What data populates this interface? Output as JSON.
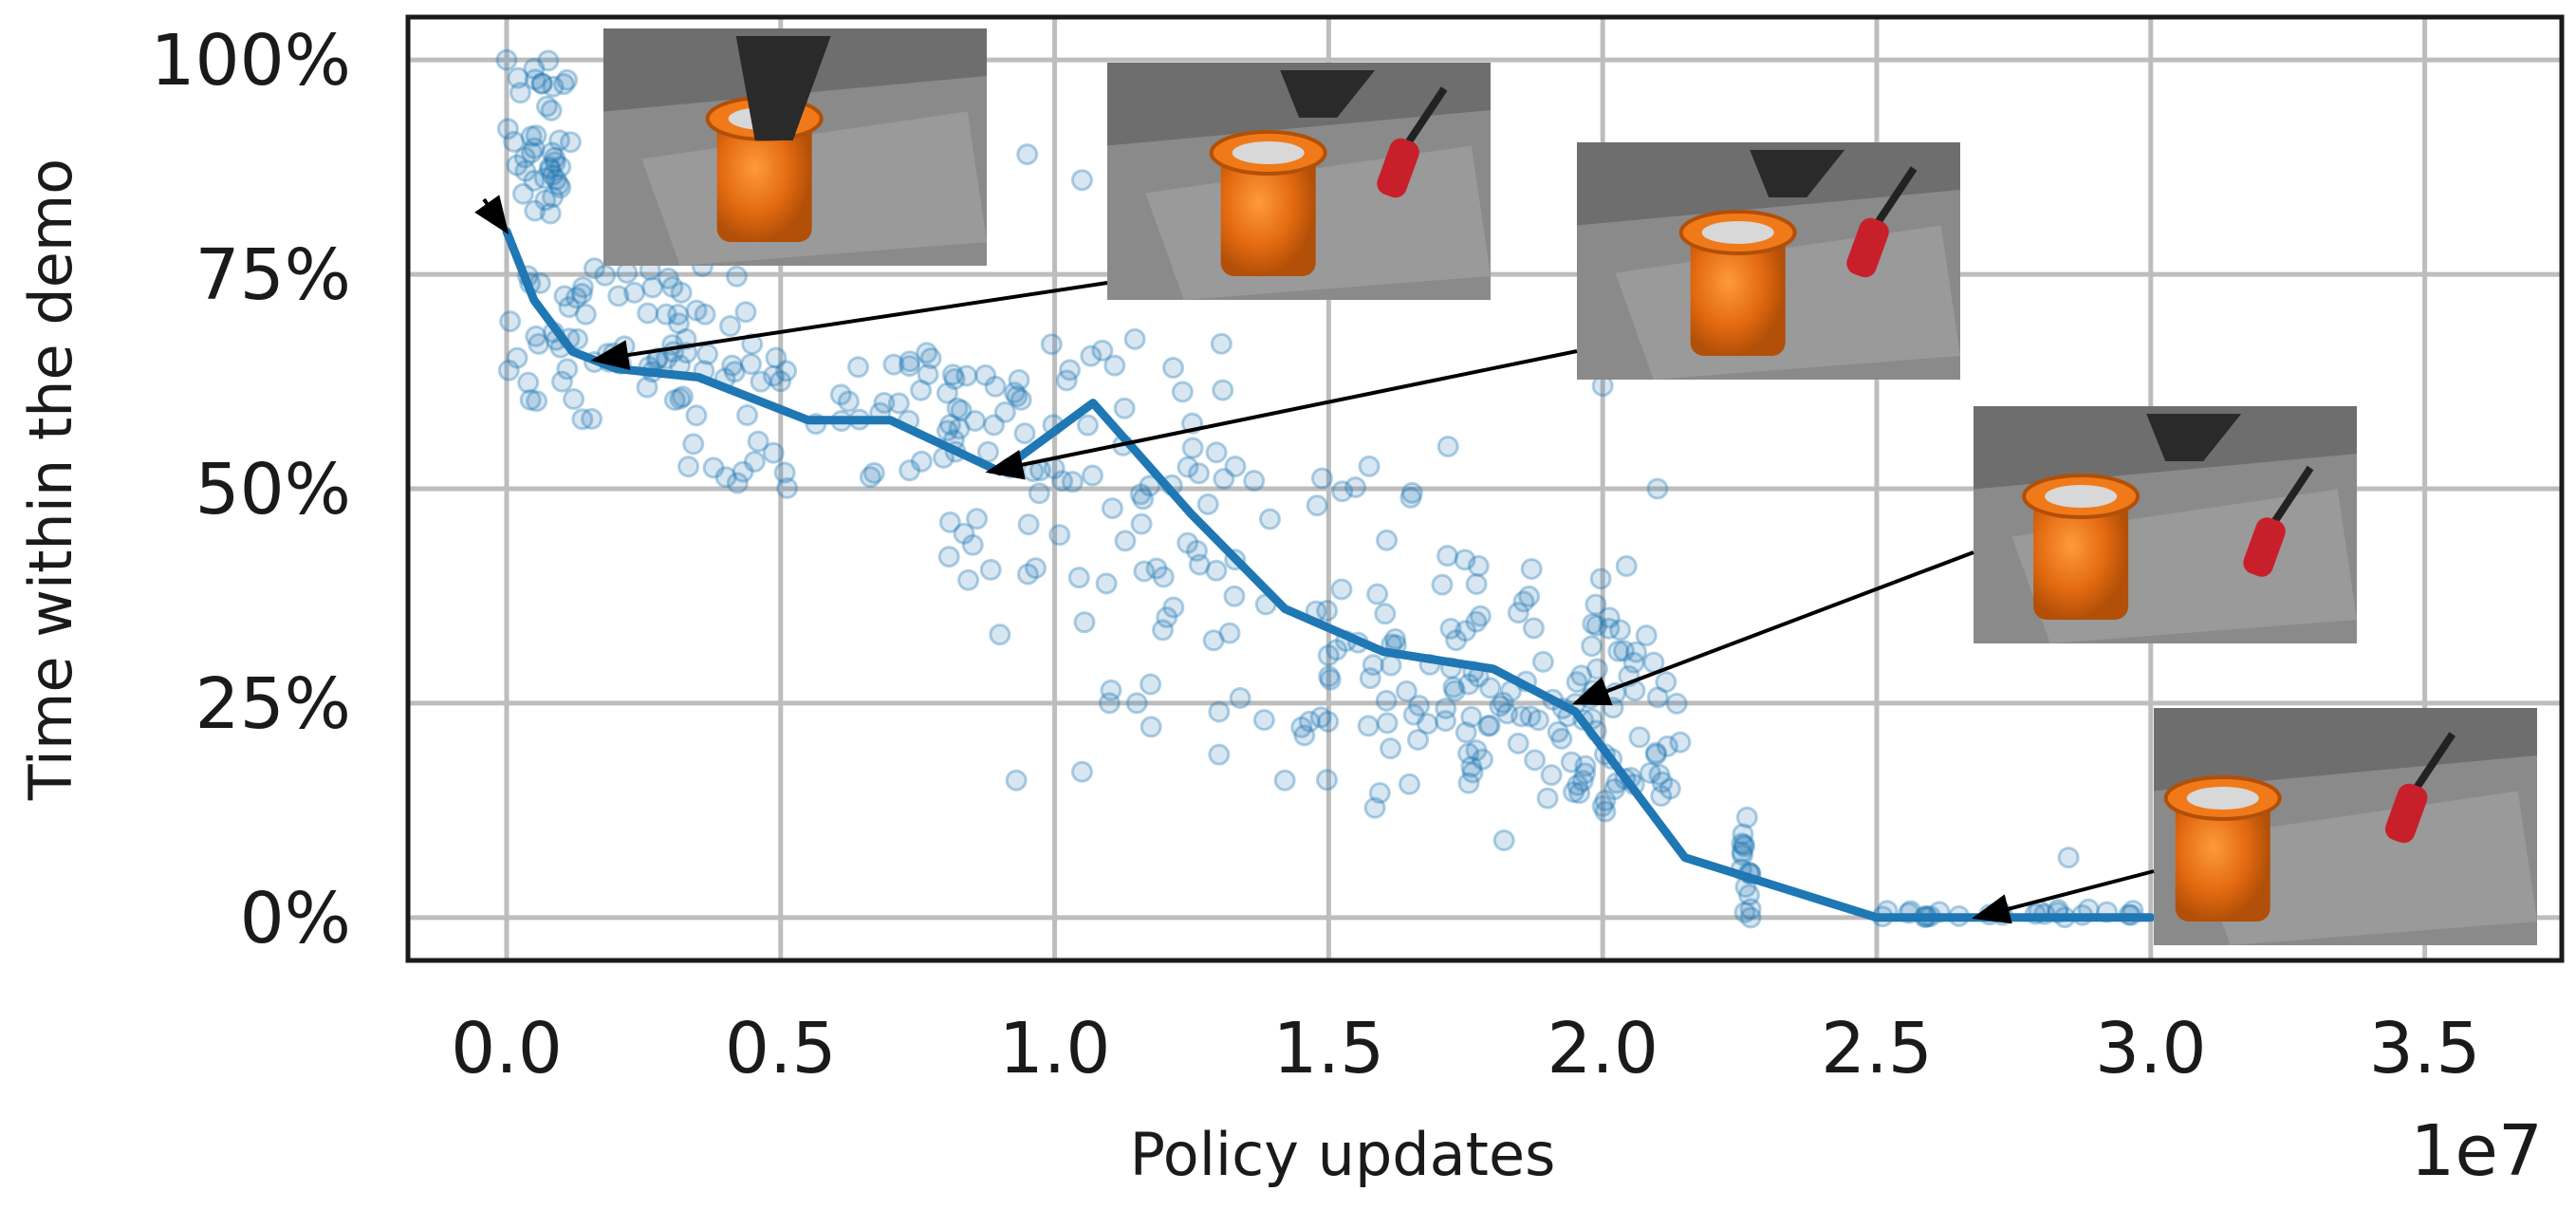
{
  "chart_data": {
    "type": "scatter",
    "xlabel": "Policy updates",
    "ylabel": "Time within the demo",
    "x_offset_label": "1e7",
    "x_ticks": [
      0.0,
      0.5,
      1.0,
      1.5,
      2.0,
      2.5,
      3.0,
      3.5
    ],
    "x_tick_labels": [
      "0.0",
      "0.5",
      "1.0",
      "1.5",
      "2.0",
      "2.5",
      "3.0",
      "3.5"
    ],
    "y_ticks": [
      0,
      25,
      50,
      75,
      100
    ],
    "y_tick_labels": [
      "0%",
      "25%",
      "50%",
      "75%",
      "100%"
    ],
    "xlim": [
      -0.18,
      3.75
    ],
    "ylim": [
      -5,
      105
    ],
    "grid": true,
    "colors": {
      "series": "#1f77b4",
      "grid": "#bdbdbd",
      "axes": "#1a1a1a"
    },
    "series": [
      {
        "kind": "scatter",
        "clusters": [
          {
            "x": [
              0.0,
              0.12
            ],
            "y": [
              82,
              100
            ],
            "n": 40
          },
          {
            "x": [
              0.0,
              0.45
            ],
            "y": [
              58,
              76
            ],
            "n": 70
          },
          {
            "x": [
              0.3,
              0.95
            ],
            "y": [
              50,
              66
            ],
            "n": 60
          },
          {
            "x": [
              0.8,
              1.35
            ],
            "y": [
              38,
              68
            ],
            "n": 55
          },
          {
            "x": [
              1.05,
              1.8
            ],
            "y": [
              22,
              55
            ],
            "n": 60
          },
          {
            "x": [
              1.45,
              2.05
            ],
            "y": [
              12,
              42
            ],
            "n": 60
          },
          {
            "x": [
              1.75,
              2.15
            ],
            "y": [
              14,
              30
            ],
            "n": 45
          },
          {
            "x": [
              2.05,
              2.15
            ],
            "y": [
              15,
              35
            ],
            "n": 14
          },
          {
            "x": [
              2.25,
              2.27
            ],
            "y": [
              0,
              13
            ],
            "n": 14
          },
          {
            "x": [
              2.5,
              3.0
            ],
            "y": [
              0,
              1
            ],
            "n": 25
          }
        ],
        "extra_points": [
          {
            "x": 0.0,
            "y": 100
          },
          {
            "x": 0.95,
            "y": 89
          },
          {
            "x": 1.05,
            "y": 86
          },
          {
            "x": 0.9,
            "y": 33
          },
          {
            "x": 0.93,
            "y": 16
          },
          {
            "x": 1.05,
            "y": 17
          },
          {
            "x": 1.1,
            "y": 25
          },
          {
            "x": 1.15,
            "y": 25
          },
          {
            "x": 1.3,
            "y": 24
          },
          {
            "x": 1.3,
            "y": 19
          },
          {
            "x": 1.42,
            "y": 16
          },
          {
            "x": 1.82,
            "y": 9
          },
          {
            "x": 2.0,
            "y": 13
          },
          {
            "x": 2.1,
            "y": 50
          },
          {
            "x": 2.0,
            "y": 62
          },
          {
            "x": 2.85,
            "y": 7
          },
          {
            "x": 2.27,
            "y": 0
          },
          {
            "x": 2.27,
            "y": 1
          }
        ]
      },
      {
        "kind": "line",
        "x": [
          0.0,
          0.05,
          0.12,
          0.2,
          0.35,
          0.55,
          0.7,
          0.9,
          1.07,
          1.25,
          1.42,
          1.6,
          1.8,
          1.95,
          2.15,
          2.35,
          2.5,
          3.0
        ],
        "y": [
          80,
          72,
          66,
          64,
          63,
          58,
          58,
          52,
          60,
          47,
          36,
          31,
          29,
          24,
          7,
          3,
          0,
          0
        ]
      }
    ],
    "annotations": [
      {
        "image": "robot-gripper-holding-orange-cup-photo",
        "target_x": 0.0,
        "target_y": 80
      },
      {
        "image": "orange-cup-and-screwdriver-photo",
        "target_x": 0.16,
        "target_y": 65
      },
      {
        "image": "orange-cup-next-to-screwdriver-photo",
        "target_x": 0.88,
        "target_y": 52
      },
      {
        "image": "two-grippers-holding-orange-cup-photo",
        "target_x": 1.95,
        "target_y": 25
      },
      {
        "image": "orange-cup-upright-with-screwdriver-photo",
        "target_x": 2.68,
        "target_y": 0
      }
    ]
  }
}
